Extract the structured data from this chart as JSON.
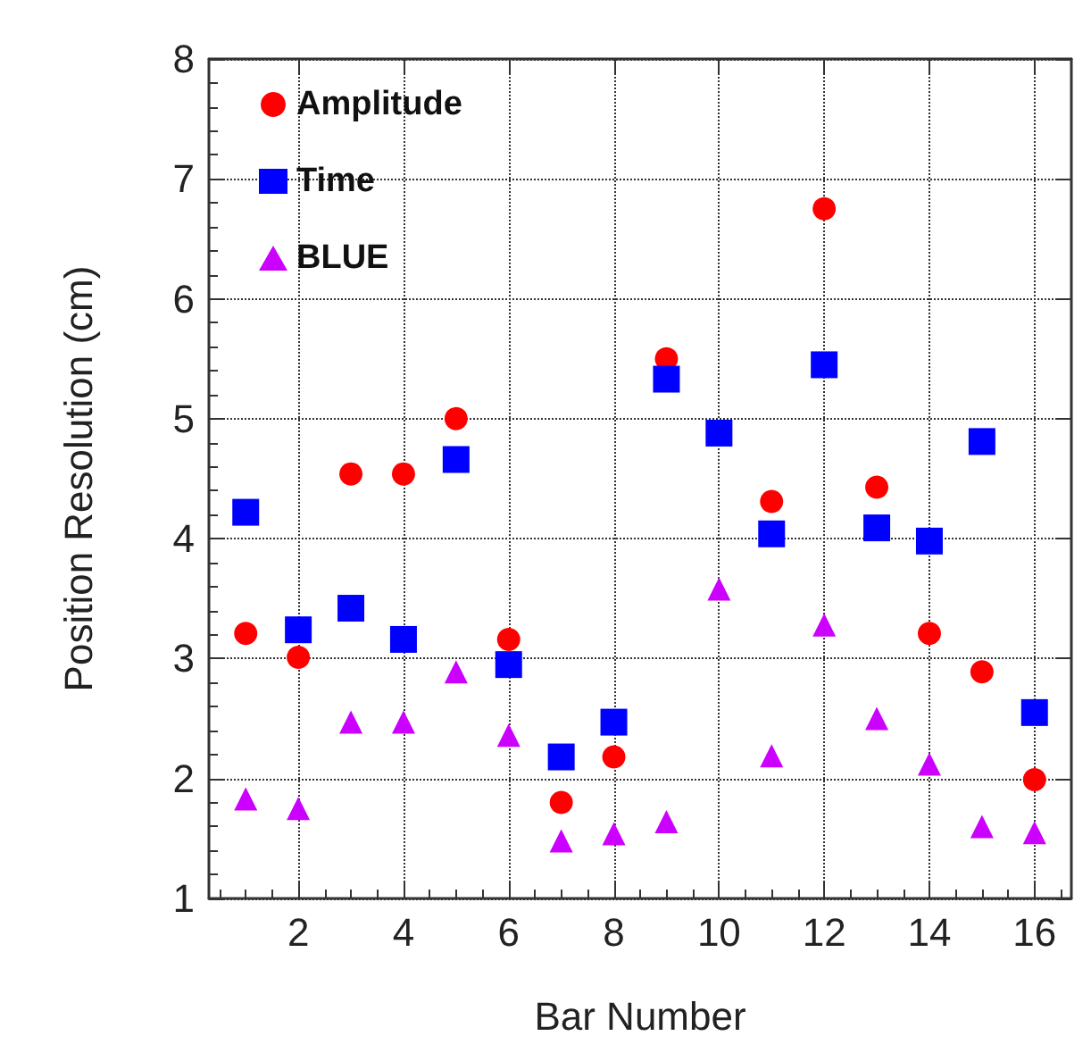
{
  "chart_data": {
    "type": "scatter",
    "xlabel": "Bar Number",
    "ylabel": "Position Resolution (cm)",
    "x": [
      1,
      2,
      3,
      4,
      5,
      6,
      7,
      8,
      9,
      10,
      11,
      12,
      13,
      14,
      15,
      16
    ],
    "series": [
      {
        "name": "Amplitude",
        "color": "#ff0000",
        "marker": "circle",
        "values": [
          3.21,
          3.01,
          4.54,
          4.54,
          5.0,
          3.16,
          1.8,
          2.18,
          5.5,
          null,
          4.31,
          6.75,
          4.43,
          3.21,
          2.89,
          1.99
        ]
      },
      {
        "name": "Time",
        "color": "#0000ff",
        "marker": "square",
        "values": [
          4.22,
          3.24,
          3.42,
          3.16,
          4.66,
          2.95,
          2.18,
          2.47,
          5.33,
          4.88,
          4.04,
          5.45,
          4.09,
          3.98,
          4.81,
          2.55
        ]
      },
      {
        "name": "BLUE",
        "color": "#cc00ff",
        "marker": "triangle",
        "values": [
          1.83,
          1.75,
          2.47,
          2.47,
          2.89,
          2.36,
          1.48,
          1.54,
          1.64,
          3.58,
          2.19,
          3.28,
          2.5,
          2.12,
          1.6,
          1.55
        ]
      }
    ],
    "xlim": [
      0.3,
      16.7
    ],
    "xticks": [
      2,
      4,
      6,
      8,
      10,
      12,
      14,
      16
    ],
    "ylim": [
      1,
      8
    ],
    "yticks": [
      1,
      2,
      3,
      4,
      5,
      6,
      7,
      8
    ],
    "grid": true,
    "legend": "top left",
    "line_style": "dotted"
  }
}
